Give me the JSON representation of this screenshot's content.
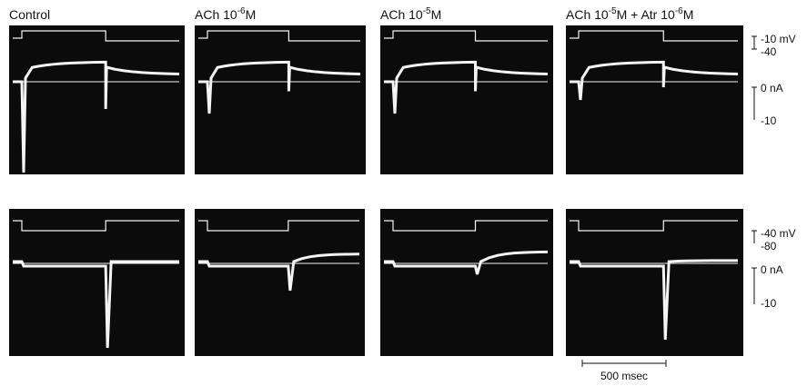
{
  "column_headers": [
    {
      "parts": [
        {
          "text": "Control"
        }
      ]
    },
    {
      "parts": [
        {
          "text": "ACh 10"
        },
        {
          "sup": "-6"
        },
        {
          "text": "M"
        }
      ]
    },
    {
      "parts": [
        {
          "text": "ACh 10"
        },
        {
          "sup": "-5"
        },
        {
          "text": "M"
        }
      ]
    },
    {
      "parts": [
        {
          "text": "ACh 10"
        },
        {
          "sup": "-5"
        },
        {
          "text": "M + Atr 10"
        },
        {
          "sup": "-6"
        },
        {
          "text": "M"
        }
      ]
    }
  ],
  "calibration": {
    "top": {
      "voltage_upper": "-10 mV",
      "voltage_lower": "-40",
      "current_zero": "0 nA",
      "current_lower": "-10"
    },
    "bottom": {
      "voltage_upper": "-40 mV",
      "voltage_lower": "-80",
      "current_zero": "0 nA",
      "current_lower": "-10"
    }
  },
  "time_scale": "500 msec"
}
